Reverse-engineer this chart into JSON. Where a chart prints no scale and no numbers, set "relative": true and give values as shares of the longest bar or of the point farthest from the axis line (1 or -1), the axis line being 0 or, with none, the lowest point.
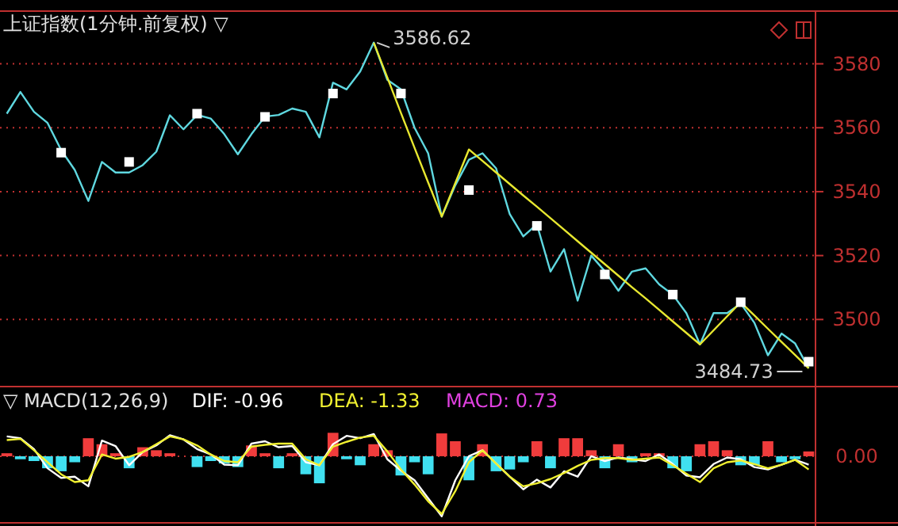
{
  "chart_data": [
    {
      "type": "line",
      "title": "上证指数(1分钟.前复权) ▽",
      "categories": [
        null,
        null,
        null,
        null,
        null,
        null,
        null,
        null,
        null,
        null,
        null,
        null,
        null,
        null,
        null,
        null,
        null,
        null,
        null,
        null,
        null,
        null,
        null,
        null,
        null,
        null,
        null,
        null,
        null,
        null,
        null,
        null,
        null,
        null,
        null,
        null,
        null,
        null,
        null,
        null,
        null,
        null,
        null,
        null,
        null,
        null,
        null,
        null,
        null,
        null,
        null,
        null,
        null,
        null,
        null,
        null,
        null,
        null,
        null,
        null
      ],
      "ylim": [
        3480,
        3596
      ],
      "yticks": [
        3500,
        3520,
        3540,
        3560,
        3580
      ],
      "tick_labels": "y",
      "grid": "y",
      "series": [
        {
          "color": "#5fd8e0",
          "values": [
            3564.4,
            3571.2,
            3565,
            3561.5,
            3553,
            3546.8,
            3537.1,
            3549.3,
            3546,
            3546,
            3548.3,
            3552.5,
            3563.9,
            3559.5,
            3564,
            3562.9,
            3558,
            3551.7,
            3558,
            3563.5,
            3564,
            3566,
            3565,
            3557,
            3574.1,
            3572,
            3577.6,
            3586.62,
            3575,
            3572,
            3560,
            3552,
            3532.2,
            3542,
            3550,
            3552,
            3547.3,
            3533,
            3526,
            3529.8,
            3515,
            3522,
            3505.9,
            3520,
            3515.1,
            3509,
            3515,
            3516,
            3511,
            3507.8,
            3502,
            3492.2,
            3502,
            3502,
            3505,
            3499,
            3488.8,
            3495.6,
            3492.5,
            3484.73
          ]
        },
        {
          "type": "line",
          "color": "#e8e830",
          "values": [
            null,
            null,
            null,
            null,
            null,
            null,
            null,
            null,
            null,
            null,
            null,
            null,
            null,
            null,
            null,
            null,
            null,
            null,
            null,
            null,
            null,
            null,
            null,
            null,
            null,
            null,
            null,
            3586.62,
            3575.7,
            3564.6,
            3553.7,
            3542.9,
            3532.2,
            3542.7,
            3553.2,
            3549.6,
            3546.0,
            3542.4,
            3538.8,
            3535.3,
            3531.7,
            3528.1,
            3524.5,
            3520.9,
            3517.3,
            3513.7,
            3510.1,
            3506.6,
            3503.0,
            3499.4,
            3495.8,
            3492.2,
            3496.6,
            3501.0,
            3505.4,
            3501.3,
            3497.1,
            3493.0,
            3488.9,
            3484.73
          ]
        },
        {
          "type": "scatter",
          "color": "#ffffff",
          "marker": "square",
          "values": [
            null,
            null,
            null,
            null,
            3552.2,
            null,
            null,
            null,
            null,
            3549.3,
            null,
            null,
            null,
            null,
            3564.4,
            null,
            null,
            null,
            null,
            3563.4,
            null,
            null,
            null,
            null,
            3570.7,
            null,
            null,
            null,
            null,
            3570.7,
            null,
            null,
            null,
            null,
            3540.5,
            null,
            null,
            null,
            null,
            3529.3,
            null,
            null,
            null,
            null,
            3514.1,
            null,
            null,
            null,
            null,
            3507.8,
            null,
            null,
            null,
            null,
            3505.4,
            null,
            null,
            null,
            null,
            3486.8
          ]
        }
      ],
      "annotations": [
        "3586.62",
        "3484.73"
      ]
    },
    {
      "type": "bar",
      "title": "▽ MACD(12,26,9)",
      "relative": true,
      "categories": [
        null,
        null,
        null,
        null,
        null,
        null,
        null,
        null,
        null,
        null,
        null,
        null,
        null,
        null,
        null,
        null,
        null,
        null,
        null,
        null,
        null,
        null,
        null,
        null,
        null,
        null,
        null,
        null,
        null,
        null,
        null,
        null,
        null,
        null,
        null,
        null,
        null,
        null,
        null,
        null,
        null,
        null,
        null,
        null,
        null,
        null,
        null,
        null,
        null,
        null,
        null,
        null,
        null,
        null,
        null,
        null,
        null,
        null,
        null,
        null
      ],
      "tick_labels": false,
      "ref_lines": [
        {
          "axis": "y",
          "value": 0,
          "label": "0.00",
          "color": "#c03030",
          "line_style": "dotted"
        }
      ],
      "annotations": [
        "MACD: 0.73"
      ],
      "series": [
        {
          "values": [
            0.05,
            -0.05,
            -0.08,
            -0.2,
            -0.25,
            -0.1,
            0.3,
            0.2,
            0.05,
            -0.2,
            0.15,
            0.1,
            0.05,
            null,
            -0.18,
            -0.08,
            -0.12,
            -0.18,
            0.18,
            0.05,
            -0.2,
            0.05,
            -0.3,
            -0.45,
            0.39,
            -0.05,
            -0.15,
            0.2,
            0.1,
            -0.32,
            -0.1,
            -0.3,
            0.38,
            0.25,
            -0.4,
            0.2,
            -0.25,
            -0.22,
            -0.1,
            0.25,
            -0.2,
            0.3,
            0.3,
            0.1,
            -0.2,
            0.2,
            -0.1,
            0.05,
            0.05,
            -0.2,
            -0.25,
            0.2,
            0.25,
            0.1,
            -0.15,
            -0.15,
            0.25,
            -0.1,
            -0.05,
            0.08
          ],
          "colors": [
            "#f03c3c",
            "#40e0f0",
            "#40e0f0",
            "#40e0f0",
            "#40e0f0",
            "#40e0f0",
            "#f03c3c",
            "#f03c3c",
            "#f03c3c",
            "#40e0f0",
            "#f03c3c",
            "#f03c3c",
            "#f03c3c",
            null,
            "#40e0f0",
            "#40e0f0",
            "#40e0f0",
            "#40e0f0",
            "#f03c3c",
            "#f03c3c",
            "#40e0f0",
            "#f03c3c",
            "#40e0f0",
            "#40e0f0",
            "#f03c3c",
            "#40e0f0",
            "#40e0f0",
            "#f03c3c",
            "#f03c3c",
            "#40e0f0",
            "#40e0f0",
            "#40e0f0",
            "#f03c3c",
            "#f03c3c",
            "#40e0f0",
            "#f03c3c",
            "#40e0f0",
            "#40e0f0",
            "#40e0f0",
            "#f03c3c",
            "#40e0f0",
            "#f03c3c",
            "#f03c3c",
            "#f03c3c",
            "#40e0f0",
            "#f03c3c",
            "#40e0f0",
            "#f03c3c",
            "#f03c3c",
            "#40e0f0",
            "#40e0f0",
            "#f03c3c",
            "#f03c3c",
            "#f03c3c",
            "#40e0f0",
            "#40e0f0",
            "#f03c3c",
            "#40e0f0",
            "#40e0f0",
            "#f03c3c"
          ]
        },
        {
          "type": "line",
          "name": "DIF: -0.96",
          "color": "#ffffff",
          "values": [
            0.33,
            0.3,
            0.12,
            -0.2,
            -0.36,
            -0.34,
            -0.5,
            0.26,
            0.17,
            -0.15,
            0.07,
            0.18,
            0.35,
            0.28,
            0.12,
            0.03,
            -0.14,
            -0.15,
            0.21,
            0.25,
            0.15,
            0.17,
            -0.1,
            -0.15,
            0.2,
            0.34,
            0.3,
            0.37,
            -0.05,
            -0.24,
            -0.4,
            -0.7,
            -1,
            -0.4,
            0,
            0.1,
            -0.12,
            -0.34,
            -0.55,
            -0.39,
            -0.52,
            -0.25,
            -0.34,
            0,
            -0.08,
            -0.02,
            -0.05,
            -0.08,
            0.03,
            -0.13,
            -0.32,
            -0.35,
            -0.13,
            -0.02,
            -0.05,
            -0.18,
            -0.22,
            -0.14,
            -0.06,
            -0.14
          ]
        },
        {
          "type": "line",
          "name": "DEA: -1.33",
          "color": "#f0f030",
          "values": [
            0.27,
            0.29,
            0.1,
            -0.1,
            -0.3,
            -0.43,
            -0.4,
            0.03,
            -0.04,
            -0.01,
            0.07,
            0.2,
            0.33,
            0.28,
            0.18,
            0.03,
            -0.08,
            -0.1,
            0.16,
            0.19,
            0.21,
            0.21,
            -0.05,
            -0.15,
            0.16,
            0.24,
            0.31,
            0.34,
            0.08,
            -0.22,
            -0.47,
            -0.75,
            -0.96,
            -0.58,
            -0.1,
            0.1,
            -0.12,
            -0.34,
            -0.5,
            -0.45,
            -0.38,
            -0.28,
            -0.16,
            -0.06,
            -0.03,
            -0.03,
            -0.06,
            -0.04,
            -0.02,
            -0.15,
            -0.29,
            -0.43,
            -0.2,
            -0.1,
            -0.07,
            -0.13,
            -0.2,
            -0.14,
            -0.06,
            -0.22
          ]
        }
      ]
    }
  ]
}
